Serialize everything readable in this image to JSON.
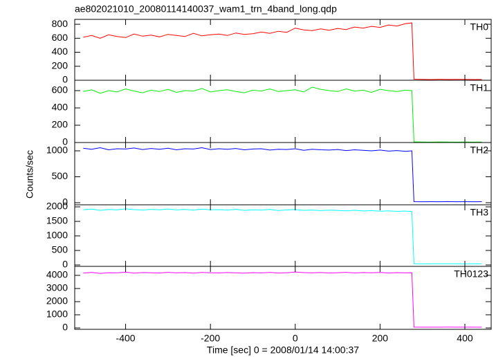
{
  "chart_data": {
    "type": "line",
    "title": "ae802021010_20080114140037_wam1_trn_4band_long.qdp",
    "x_label": "Time [sec] 0 = 2008/01/14 14:00:37",
    "y_label": "Counts/sec",
    "x": [
      -500,
      -480,
      -460,
      -440,
      -420,
      -400,
      -380,
      -360,
      -340,
      -320,
      -300,
      -280,
      -260,
      -240,
      -220,
      -200,
      -180,
      -160,
      -140,
      -120,
      -100,
      -80,
      -60,
      -40,
      -20,
      0,
      20,
      40,
      60,
      80,
      100,
      120,
      140,
      160,
      180,
      200,
      220,
      240,
      260,
      275,
      280,
      300,
      320,
      340,
      360,
      380,
      400,
      420,
      440
    ],
    "xlim": [
      -520,
      462
    ],
    "xticks": [
      -400,
      -200,
      0,
      200,
      400
    ],
    "series": [
      {
        "name": "TH0",
        "color": "#ff0000",
        "ylim": [
          0,
          870
        ],
        "yticks": [
          0,
          200,
          400,
          600,
          800
        ],
        "values": [
          615,
          640,
          600,
          650,
          625,
          610,
          660,
          630,
          645,
          620,
          655,
          640,
          625,
          670,
          635,
          650,
          660,
          640,
          675,
          655,
          665,
          690,
          670,
          700,
          685,
          745,
          720,
          710,
          735,
          715,
          740,
          725,
          760,
          745,
          770,
          755,
          790,
          775,
          810,
          820,
          15,
          12,
          10,
          14,
          11,
          13,
          12,
          10,
          11
        ]
      },
      {
        "name": "TH1",
        "color": "#00ee00",
        "ylim": [
          0,
          720
        ],
        "yticks": [
          0,
          200,
          400,
          600
        ],
        "values": [
          590,
          610,
          570,
          600,
          585,
          620,
          595,
          575,
          605,
          590,
          615,
          580,
          600,
          595,
          625,
          585,
          600,
          610,
          590,
          575,
          605,
          595,
          620,
          590,
          600,
          610,
          585,
          640,
          615,
          600,
          590,
          620,
          595,
          605,
          580,
          615,
          600,
          590,
          605,
          600,
          8,
          6,
          5,
          7,
          6,
          5,
          6,
          5,
          6
        ]
      },
      {
        "name": "TH2",
        "color": "#0000ff",
        "ylim": [
          -40,
          1160
        ],
        "yticks": [
          0,
          500,
          1000
        ],
        "values": [
          1050,
          1030,
          1060,
          1020,
          1040,
          1035,
          1055,
          1025,
          1045,
          1030,
          1050,
          1020,
          1040,
          1035,
          1060,
          1025,
          1040,
          1030,
          1045,
          1020,
          1035,
          1040,
          1015,
          1030,
          1025,
          1040,
          1010,
          1030,
          1020,
          1015,
          1025,
          1005,
          1020,
          1010,
          1000,
          1015,
          995,
          1005,
          990,
          1000,
          20,
          18,
          20,
          19,
          21,
          18,
          20,
          19,
          20
        ]
      },
      {
        "name": "TH3",
        "color": "#00ffff",
        "ylim": [
          -48,
          2071
        ],
        "yticks": [
          0,
          500,
          1000,
          1500,
          2000
        ],
        "values": [
          1900,
          1920,
          1880,
          1910,
          1895,
          1930,
          1905,
          1890,
          1915,
          1900,
          1925,
          1895,
          1910,
          1885,
          1920,
          1900,
          1905,
          1890,
          1915,
          1880,
          1900,
          1890,
          1910,
          1875,
          1895,
          1905,
          1880,
          1890,
          1870,
          1885,
          1875,
          1865,
          1880,
          1860,
          1870,
          1850,
          1865,
          1845,
          1855,
          1840,
          40,
          38,
          40,
          39,
          41,
          40,
          38,
          39,
          40
        ]
      },
      {
        "name": "TH0123",
        "color": "#ff00ff",
        "ylim": [
          -105,
          4684
        ],
        "yticks": [
          0,
          1000,
          2000,
          3000,
          4000
        ],
        "values": [
          4180,
          4220,
          4150,
          4200,
          4190,
          4240,
          4170,
          4210,
          4195,
          4180,
          4230,
          4190,
          4210,
          4170,
          4220,
          4200,
          4185,
          4215,
          4190,
          4175,
          4205,
          4190,
          4220,
          4180,
          4200,
          4260,
          4210,
          4190,
          4215,
          4180,
          4200,
          4230,
          4185,
          4210,
          4195,
          4220,
          4180,
          4205,
          4190,
          4200,
          60,
          58,
          60,
          59,
          61,
          60,
          58,
          59,
          60
        ]
      }
    ]
  }
}
